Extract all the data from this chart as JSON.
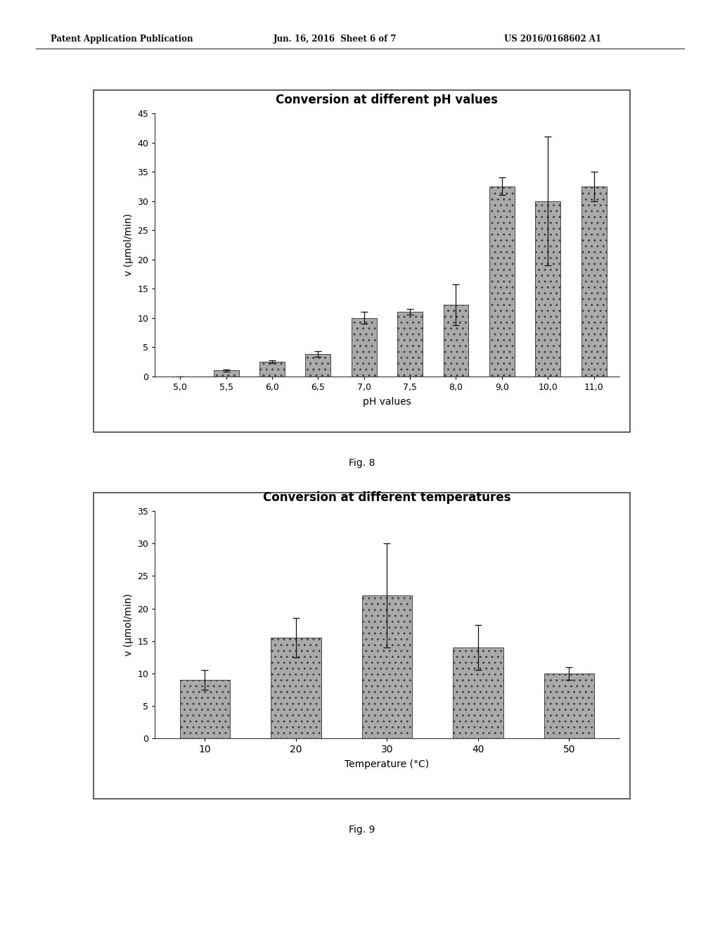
{
  "fig8": {
    "title": "Conversion at different pH values",
    "xlabel": "pH values",
    "ylabel": "v (μmol/min)",
    "categories": [
      "5,0",
      "5,5",
      "6,0",
      "6,5",
      "7,0",
      "7,5",
      "8,0",
      "9,0",
      "10,0",
      "11,0"
    ],
    "values": [
      0.0,
      1.0,
      2.5,
      3.8,
      10.0,
      11.0,
      12.2,
      32.5,
      30.0,
      32.5
    ],
    "errors": [
      0.0,
      0.15,
      0.25,
      0.5,
      1.0,
      0.5,
      3.5,
      1.5,
      11.0,
      2.5
    ],
    "ylim": [
      0,
      45
    ],
    "yticks": [
      0,
      5,
      10,
      15,
      20,
      25,
      30,
      35,
      40,
      45
    ],
    "bar_color": "#aaaaaa",
    "bar_hatch": ".."
  },
  "fig9": {
    "title": "Conversion at different temperatures",
    "xlabel": "Temperature (°C)",
    "ylabel": "v (μmol/min)",
    "categories": [
      "10",
      "20",
      "30",
      "40",
      "50"
    ],
    "values": [
      9.0,
      15.5,
      22.0,
      14.0,
      10.0
    ],
    "errors": [
      1.5,
      3.0,
      8.0,
      3.5,
      1.0
    ],
    "ylim": [
      0,
      35
    ],
    "yticks": [
      0,
      5,
      10,
      15,
      20,
      25,
      30,
      35
    ],
    "bar_color": "#aaaaaa",
    "bar_hatch": ".."
  },
  "header_left": "Patent Application Publication",
  "header_center": "Jun. 16, 2016  Sheet 6 of 7",
  "header_right": "US 2016/0168602 A1",
  "fig8_label": "Fig. 8",
  "fig9_label": "Fig. 9",
  "background_color": "#ffffff",
  "panel_bg": "#ffffff"
}
